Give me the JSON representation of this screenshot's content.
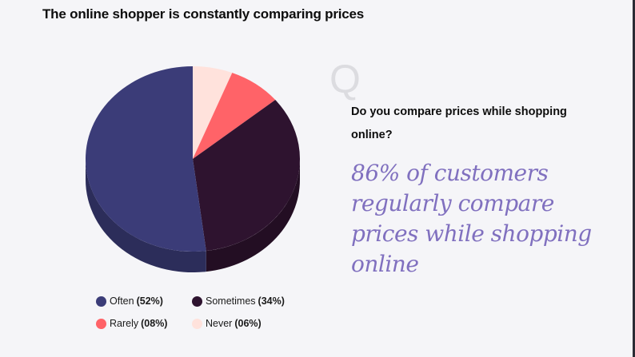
{
  "title": "The online shopper is constantly comparing prices",
  "question": {
    "icon_letter": "Q",
    "text": "Do you compare prices while shopping online?"
  },
  "highlight": "86% of customers regularly compare prices while shopping online",
  "legend": [
    {
      "label": "Often",
      "pct": "(52%)",
      "color": "#3b3c78"
    },
    {
      "label": "Sometimes",
      "pct": "(34%)",
      "color": "#2e132f"
    },
    {
      "label": "Rarely",
      "pct": "(08%)",
      "color": "#ff6368"
    },
    {
      "label": "Never",
      "pct": "(06%)",
      "color": "#ffe2dc"
    }
  ],
  "chart_data": {
    "type": "pie",
    "title": "The online shopper is constantly comparing prices",
    "categories": [
      "Often",
      "Sometimes",
      "Rarely",
      "Never"
    ],
    "values": [
      52,
      34,
      8,
      6
    ],
    "colors": [
      "#3b3c78",
      "#2e132f",
      "#ff6368",
      "#ffe2dc"
    ],
    "style": "3d",
    "legend_position": "bottom"
  }
}
